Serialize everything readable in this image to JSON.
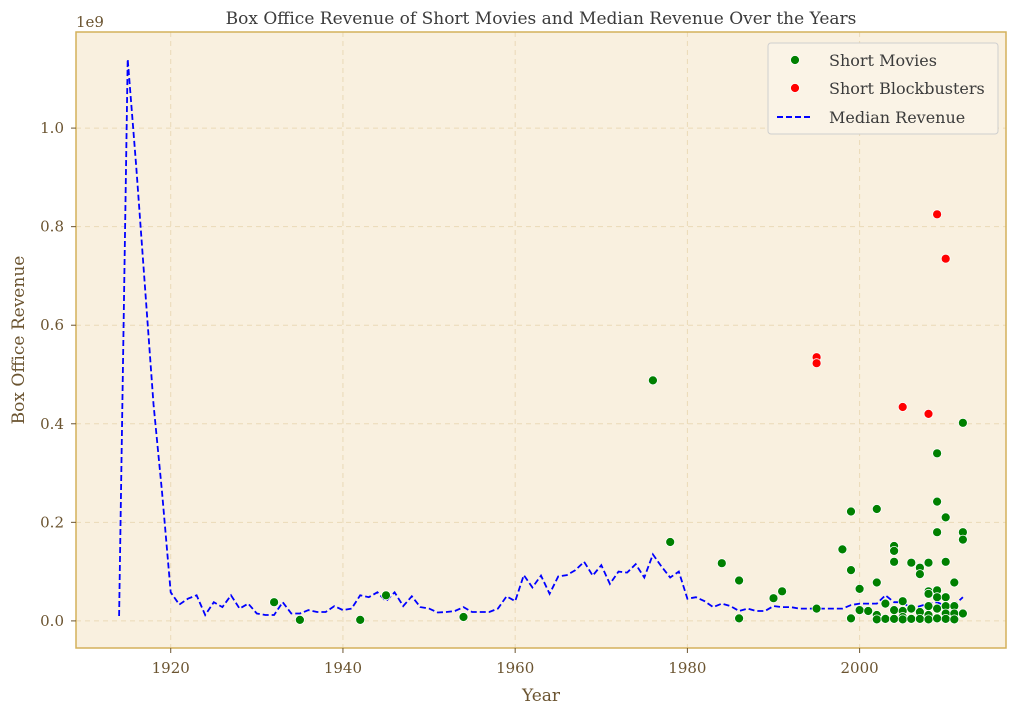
{
  "chart_data": {
    "type": "scatter",
    "title": "Box Office Revenue of Short Movies and Median Revenue Over the Years",
    "xlabel": "Year",
    "ylabel": "Box Office Revenue",
    "y_offset_label": "1e9",
    "y_scale": 1000000000,
    "xlim": [
      1909,
      2017
    ],
    "ylim": [
      -0.055,
      1.195
    ],
    "x_ticks": [
      1920,
      1940,
      1960,
      1980,
      2000
    ],
    "x_tick_labels": [
      "1920",
      "1940",
      "1960",
      "1980",
      "2000"
    ],
    "y_ticks": [
      0.0,
      0.2,
      0.4,
      0.6,
      0.8,
      1.0
    ],
    "y_tick_labels": [
      "0.0",
      "0.2",
      "0.4",
      "0.6",
      "0.8",
      "1.0"
    ],
    "grid": true,
    "legend_position": "top-right",
    "colors": {
      "background": "#f9f0df",
      "frame": "#d4b15a",
      "grid": "#ead9b7",
      "short_movies": "#008000",
      "short_blockbusters": "#ff0000",
      "median": "#0000ff"
    },
    "series": [
      {
        "name": "Short Movies",
        "kind": "scatter",
        "points": [
          [
            1932,
            0.038
          ],
          [
            1935,
            0.002
          ],
          [
            1942,
            0.002
          ],
          [
            1945,
            0.052
          ],
          [
            1954,
            0.008
          ],
          [
            1976,
            0.488
          ],
          [
            1978,
            0.16
          ],
          [
            1984,
            0.117
          ],
          [
            1986,
            0.082
          ],
          [
            1986,
            0.005
          ],
          [
            1990,
            0.046
          ],
          [
            1991,
            0.06
          ],
          [
            1995,
            0.025
          ],
          [
            1998,
            0.145
          ],
          [
            1999,
            0.222
          ],
          [
            1999,
            0.103
          ],
          [
            1999,
            0.005
          ],
          [
            2000,
            0.065
          ],
          [
            2000,
            0.022
          ],
          [
            2001,
            0.02
          ],
          [
            2002,
            0.227
          ],
          [
            2002,
            0.078
          ],
          [
            2002,
            0.012
          ],
          [
            2002,
            0.003
          ],
          [
            2003,
            0.035
          ],
          [
            2003,
            0.004
          ],
          [
            2004,
            0.152
          ],
          [
            2004,
            0.142
          ],
          [
            2004,
            0.12
          ],
          [
            2004,
            0.022
          ],
          [
            2004,
            0.004
          ],
          [
            2005,
            0.04
          ],
          [
            2005,
            0.02
          ],
          [
            2005,
            0.008
          ],
          [
            2005,
            0.003
          ],
          [
            2006,
            0.118
          ],
          [
            2006,
            0.025
          ],
          [
            2006,
            0.004
          ],
          [
            2007,
            0.108
          ],
          [
            2007,
            0.095
          ],
          [
            2007,
            0.018
          ],
          [
            2007,
            0.004
          ],
          [
            2008,
            0.118
          ],
          [
            2008,
            0.06
          ],
          [
            2008,
            0.055
          ],
          [
            2008,
            0.03
          ],
          [
            2008,
            0.012
          ],
          [
            2008,
            0.003
          ],
          [
            2009,
            0.34
          ],
          [
            2009,
            0.242
          ],
          [
            2009,
            0.18
          ],
          [
            2009,
            0.062
          ],
          [
            2009,
            0.048
          ],
          [
            2009,
            0.025
          ],
          [
            2009,
            0.005
          ],
          [
            2010,
            0.21
          ],
          [
            2010,
            0.12
          ],
          [
            2010,
            0.048
          ],
          [
            2010,
            0.03
          ],
          [
            2010,
            0.015
          ],
          [
            2010,
            0.004
          ],
          [
            2011,
            0.078
          ],
          [
            2011,
            0.03
          ],
          [
            2011,
            0.015
          ],
          [
            2011,
            0.003
          ],
          [
            2012,
            0.402
          ],
          [
            2012,
            0.18
          ],
          [
            2012,
            0.165
          ],
          [
            2012,
            0.015
          ]
        ]
      },
      {
        "name": "Short Blockbusters",
        "kind": "scatter",
        "points": [
          [
            1995,
            0.535
          ],
          [
            1995,
            0.523
          ],
          [
            2005,
            0.434
          ],
          [
            2008,
            0.42
          ],
          [
            2009,
            0.825
          ],
          [
            2010,
            0.735
          ]
        ]
      },
      {
        "name": "Median Revenue",
        "kind": "line",
        "points": [
          [
            1914,
            0.01
          ],
          [
            1915,
            1.14
          ],
          [
            1916,
            0.92
          ],
          [
            1917,
            0.68
          ],
          [
            1918,
            0.44
          ],
          [
            1919,
            0.26
          ],
          [
            1920,
            0.058
          ],
          [
            1921,
            0.033
          ],
          [
            1922,
            0.045
          ],
          [
            1923,
            0.052
          ],
          [
            1924,
            0.012
          ],
          [
            1925,
            0.038
          ],
          [
            1926,
            0.028
          ],
          [
            1927,
            0.052
          ],
          [
            1928,
            0.025
          ],
          [
            1929,
            0.035
          ],
          [
            1930,
            0.015
          ],
          [
            1931,
            0.012
          ],
          [
            1932,
            0.012
          ],
          [
            1933,
            0.038
          ],
          [
            1934,
            0.015
          ],
          [
            1935,
            0.015
          ],
          [
            1936,
            0.022
          ],
          [
            1937,
            0.018
          ],
          [
            1938,
            0.018
          ],
          [
            1939,
            0.03
          ],
          [
            1940,
            0.022
          ],
          [
            1941,
            0.025
          ],
          [
            1942,
            0.052
          ],
          [
            1943,
            0.048
          ],
          [
            1944,
            0.058
          ],
          [
            1945,
            0.04
          ],
          [
            1946,
            0.058
          ],
          [
            1947,
            0.03
          ],
          [
            1948,
            0.05
          ],
          [
            1949,
            0.028
          ],
          [
            1950,
            0.025
          ],
          [
            1951,
            0.017
          ],
          [
            1952,
            0.018
          ],
          [
            1953,
            0.02
          ],
          [
            1954,
            0.028
          ],
          [
            1955,
            0.018
          ],
          [
            1956,
            0.018
          ],
          [
            1957,
            0.018
          ],
          [
            1958,
            0.025
          ],
          [
            1959,
            0.05
          ],
          [
            1960,
            0.04
          ],
          [
            1961,
            0.093
          ],
          [
            1962,
            0.068
          ],
          [
            1963,
            0.092
          ],
          [
            1964,
            0.055
          ],
          [
            1965,
            0.09
          ],
          [
            1966,
            0.093
          ],
          [
            1967,
            0.103
          ],
          [
            1968,
            0.12
          ],
          [
            1969,
            0.092
          ],
          [
            1970,
            0.113
          ],
          [
            1971,
            0.075
          ],
          [
            1972,
            0.1
          ],
          [
            1973,
            0.098
          ],
          [
            1974,
            0.115
          ],
          [
            1975,
            0.088
          ],
          [
            1976,
            0.135
          ],
          [
            1977,
            0.11
          ],
          [
            1978,
            0.088
          ],
          [
            1979,
            0.1
          ],
          [
            1980,
            0.045
          ],
          [
            1981,
            0.048
          ],
          [
            1982,
            0.04
          ],
          [
            1983,
            0.028
          ],
          [
            1984,
            0.035
          ],
          [
            1985,
            0.03
          ],
          [
            1986,
            0.02
          ],
          [
            1987,
            0.025
          ],
          [
            1988,
            0.02
          ],
          [
            1989,
            0.02
          ],
          [
            1990,
            0.03
          ],
          [
            1991,
            0.028
          ],
          [
            1992,
            0.028
          ],
          [
            1993,
            0.025
          ],
          [
            1994,
            0.025
          ],
          [
            1995,
            0.025
          ],
          [
            1996,
            0.025
          ],
          [
            1997,
            0.025
          ],
          [
            1998,
            0.025
          ],
          [
            1999,
            0.032
          ],
          [
            2000,
            0.035
          ],
          [
            2001,
            0.035
          ],
          [
            2002,
            0.035
          ],
          [
            2003,
            0.052
          ],
          [
            2004,
            0.038
          ],
          [
            2005,
            0.038
          ],
          [
            2006,
            0.025
          ],
          [
            2007,
            0.03
          ],
          [
            2008,
            0.035
          ],
          [
            2009,
            0.038
          ],
          [
            2010,
            0.03
          ],
          [
            2011,
            0.032
          ],
          [
            2012,
            0.048
          ]
        ]
      }
    ]
  }
}
